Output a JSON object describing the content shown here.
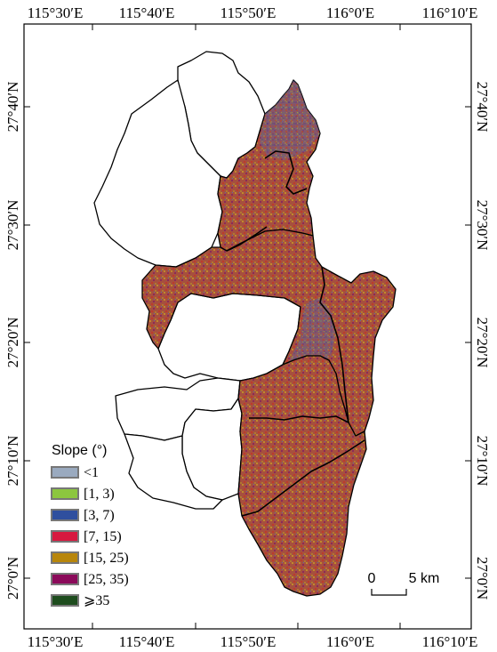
{
  "map": {
    "lon_ticks": [
      "115°30′E",
      "115°40′E",
      "115°50′E",
      "116°0′E",
      "116°10′E"
    ],
    "lat_ticks": [
      "27°40′N",
      "27°30′N",
      "27°20′N",
      "27°10′N",
      "27°0′N"
    ],
    "legend": {
      "title": "Slope (°)",
      "items": [
        {
          "label": "<1",
          "color": "#9aaabf"
        },
        {
          "label": "[1, 3)",
          "color": "#8cc63f"
        },
        {
          "label": "[3, 7)",
          "color": "#2f4f9e"
        },
        {
          "label": "[7, 15)",
          "color": "#d7193f"
        },
        {
          "label": "[15, 25)",
          "color": "#b8860b"
        },
        {
          "label": "[25, 35)",
          "color": "#8b0a5a"
        },
        {
          "label": "⩾35",
          "color": "#1e4d1e"
        }
      ]
    },
    "scale_bar": {
      "zero": "0",
      "label": "5 km"
    },
    "colors": {
      "region_fill": "#a6503e",
      "outline": "#000000",
      "frame": "#000000"
    }
  }
}
